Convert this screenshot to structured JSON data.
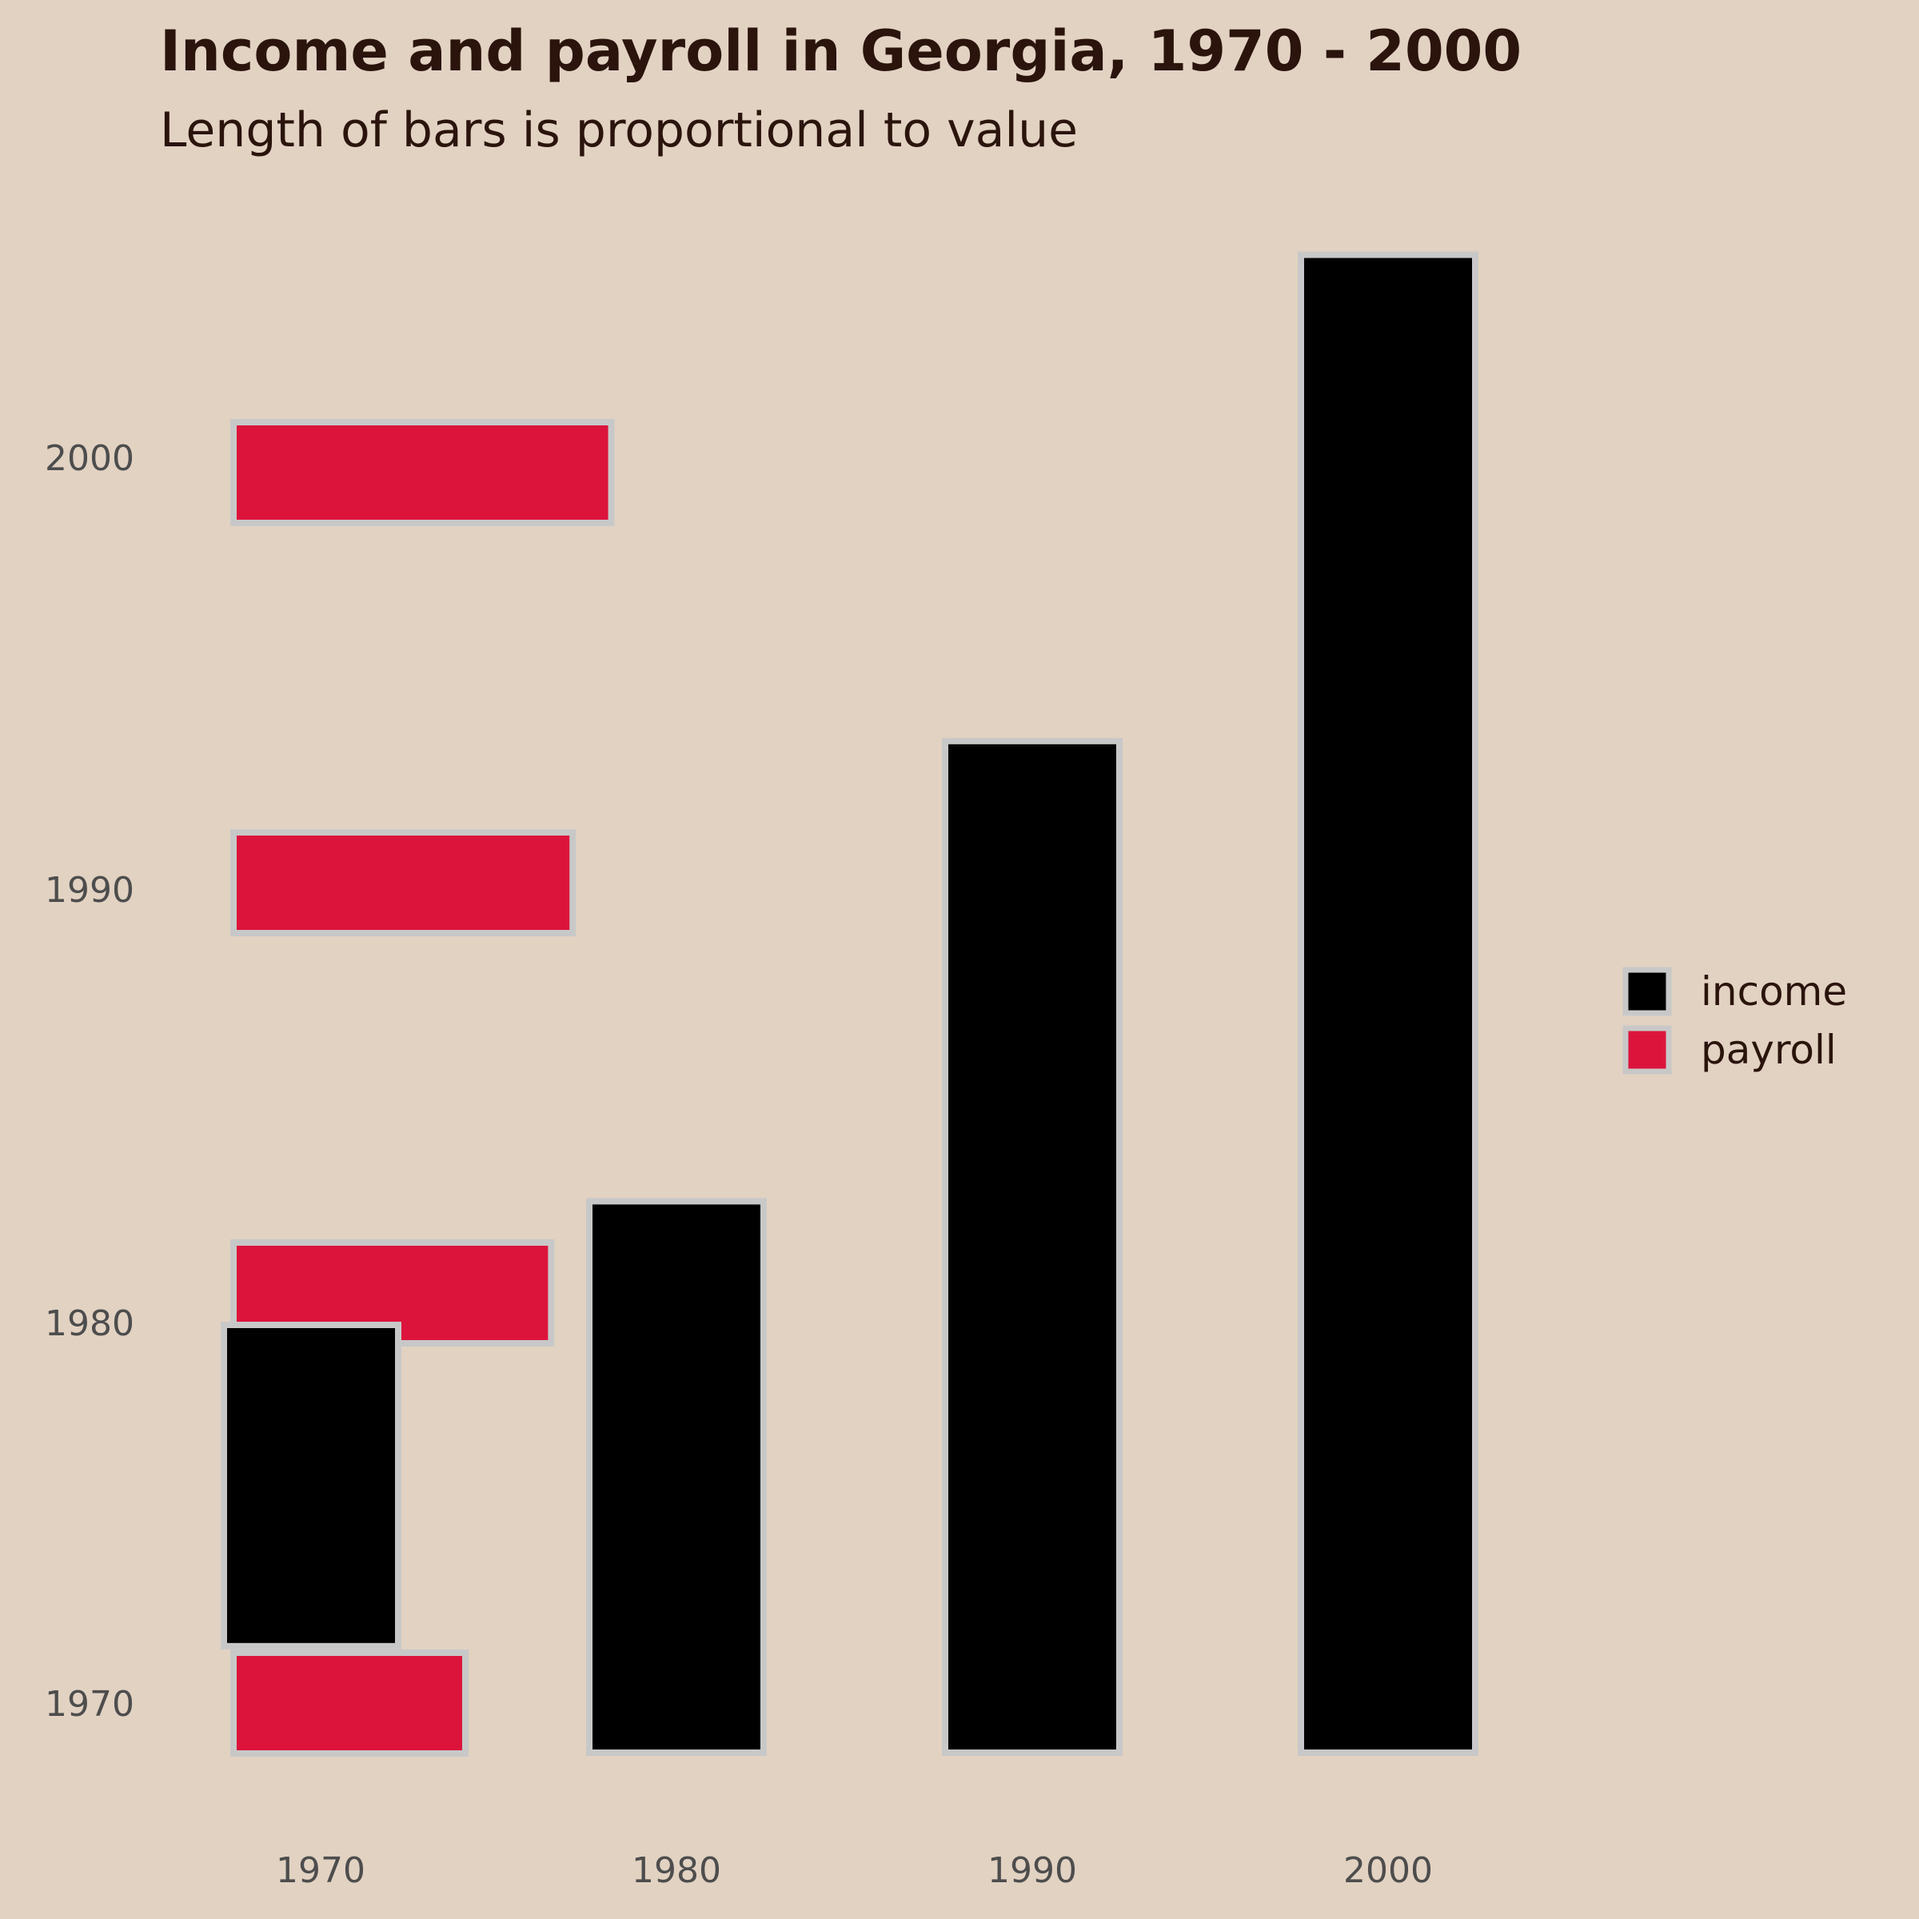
{
  "chart_data": {
    "type": "bar",
    "title": "Income and payroll in Georgia, 1970 - 2000",
    "subtitle": "Length of bars is proportional to value",
    "categories": [
      "1970",
      "1980",
      "1990",
      "2000"
    ],
    "series": [
      {
        "name": "income",
        "orientation": "vertical",
        "values": [
          7.4,
          12.7,
          23.3,
          34.5
        ]
      },
      {
        "name": "payroll",
        "orientation": "horizontal",
        "values": [
          5.4,
          7.4,
          7.9,
          8.8
        ]
      }
    ],
    "x_ticks": [
      "1970",
      "1980",
      "1990",
      "2000"
    ],
    "y_ticks": [
      "1970",
      "1980",
      "1990",
      "2000"
    ],
    "legend": {
      "position": "right",
      "items": [
        "income",
        "payroll"
      ]
    },
    "colors": {
      "income": "#000000",
      "payroll": "#dc143c",
      "bar_outline": "#c8c8c8",
      "background": "#e2d2c2"
    },
    "grid": false
  }
}
